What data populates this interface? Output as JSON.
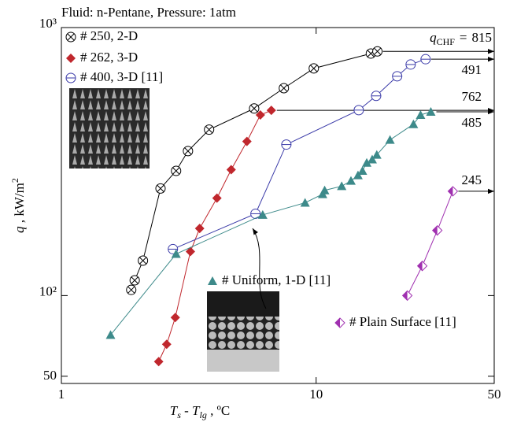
{
  "chart_data": {
    "type": "scatter",
    "title": "Fluid: n-Pentane, Pressure: 1atm",
    "xlabel": {
      "var": "T",
      "sub1": "s",
      "mid": " - T",
      "sub2": "lg",
      "unit": " , ºC"
    },
    "ylabel": {
      "var": "q",
      "unit": " , kW/m",
      "sup": "2"
    },
    "log_x": true,
    "log_y": true,
    "xlim": [
      1,
      50
    ],
    "xticks": [
      1,
      10,
      50
    ],
    "ylim": [
      47,
      1000
    ],
    "yticks": [
      50,
      {
        "value": 100,
        "label": "10²"
      },
      {
        "value": 1000,
        "label": "10³"
      }
    ],
    "chf_annotation": {
      "symbol": "q",
      "subscript": "CHF",
      "operator": "="
    },
    "series": [
      {
        "name": "# 250, 2-D",
        "color": "#000000",
        "marker": "circle-x",
        "chf": 815,
        "x": [
          1.88,
          1.94,
          2.09,
          2.45,
          2.82,
          3.14,
          3.8,
          5.71,
          7.47,
          9.79,
          16.4,
          17.4
        ],
        "values": [
          105,
          114,
          135,
          251,
          292,
          346,
          416,
          499,
          594,
          704,
          800,
          815
        ]
      },
      {
        "name": "# 262, 3-D",
        "color": "#c0272d",
        "marker": "diamond",
        "chf": 491,
        "x": [
          2.41,
          2.59,
          2.8,
          3.21,
          3.49,
          4.08,
          4.64,
          5.35,
          6.04,
          6.67
        ],
        "values": [
          56.7,
          65.8,
          82.8,
          146,
          178,
          231,
          295,
          376,
          472,
          491
        ]
      },
      {
        "name": "# 400, 3-D [11]",
        "color": "#3a3aa8",
        "marker": "circle",
        "chf": 762,
        "x": [
          2.74,
          5.78,
          7.64,
          14.7,
          17.2,
          20.8,
          23.5,
          26.9
        ],
        "values": [
          149,
          202,
          366,
          492,
          556,
          658,
          728,
          762
        ]
      },
      {
        "name": "# Uniform, 1-D [11]",
        "color": "#3d8a8a",
        "marker": "triangle",
        "chf": 485,
        "x": [
          1.56,
          2.82,
          6.17,
          9.05,
          10.6,
          10.8,
          12.6,
          13.7,
          14.6,
          15.2,
          15.8,
          16.6,
          17.3,
          19.5,
          24.1,
          25.7,
          28.2
        ],
        "values": [
          71.3,
          143,
          200,
          222,
          239,
          247,
          256,
          268,
          281,
          292,
          313,
          322,
          335,
          381,
          436,
          472,
          485
        ]
      },
      {
        "name": "# Plain Surface [11]",
        "color": "#a030b0",
        "marker": "half-diamond",
        "chf": 245,
        "x": [
          22.8,
          26.1,
          29.9,
          34.4
        ],
        "values": [
          100,
          129,
          175,
          245
        ]
      }
    ]
  }
}
